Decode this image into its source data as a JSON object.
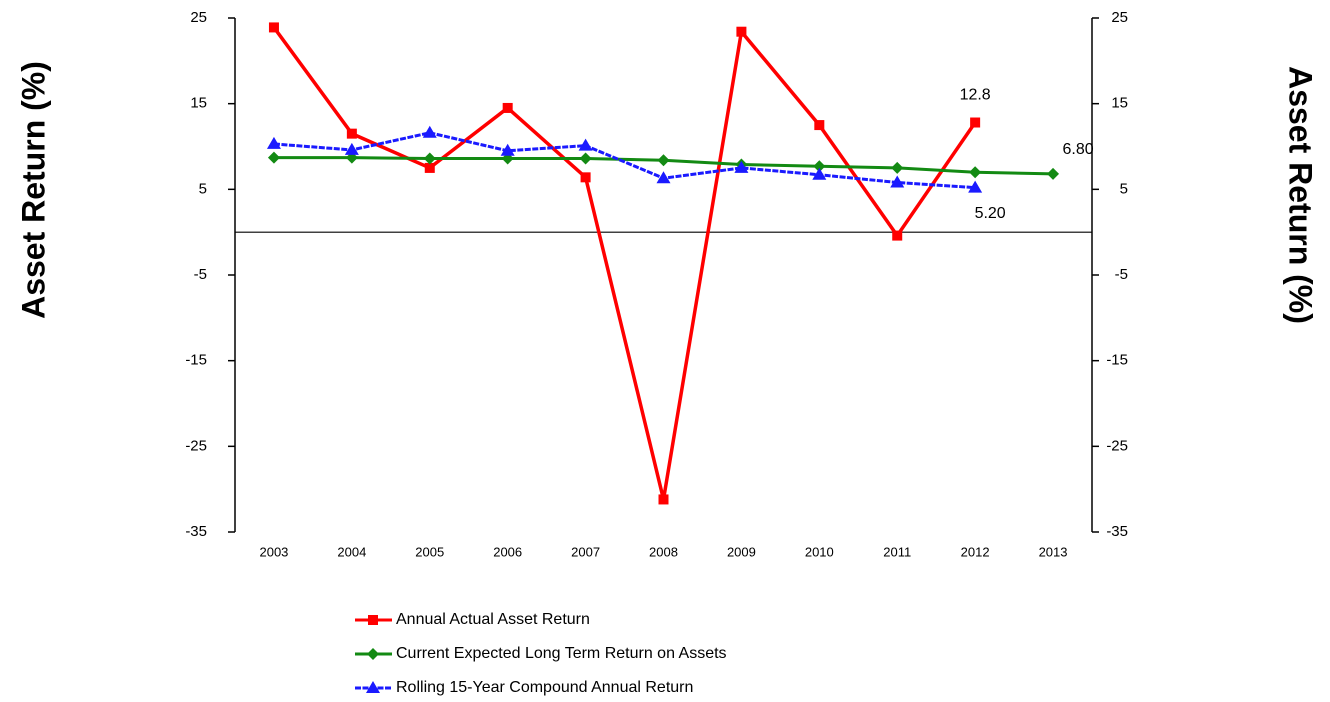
{
  "chart_data": {
    "type": "line",
    "y_label": "Asset Return (%)",
    "y2_label": "Asset Return (%)",
    "categories": [
      "2003",
      "2004",
      "2005",
      "2006",
      "2007",
      "2008",
      "2009",
      "2010",
      "2011",
      "2012",
      "2013"
    ],
    "series": [
      {
        "name": "Annual Actual Asset Return",
        "color": "#ff0000",
        "marker": "square",
        "values": [
          23.9,
          11.5,
          7.5,
          14.5,
          6.4,
          -31.2,
          23.4,
          12.5,
          -0.4,
          12.8,
          null
        ],
        "value_labels": [
          null,
          null,
          null,
          null,
          null,
          null,
          null,
          null,
          null,
          "12.8",
          null
        ]
      },
      {
        "name": "Current Expected Long Term Return on Assets",
        "color": "#138a13",
        "marker": "diamond",
        "values": [
          8.7,
          8.7,
          8.6,
          8.6,
          8.6,
          8.4,
          7.9,
          7.7,
          7.5,
          7.0,
          6.8
        ],
        "value_labels": [
          null,
          null,
          null,
          null,
          null,
          null,
          null,
          null,
          null,
          null,
          "6.80"
        ]
      },
      {
        "name": "Rolling 15-Year Compound Annual Return",
        "color": "#1a1aff",
        "marker": "triangle",
        "values": [
          10.3,
          9.6,
          11.6,
          9.5,
          10.1,
          6.3,
          7.5,
          6.7,
          5.8,
          5.2,
          null
        ],
        "value_labels": [
          null,
          null,
          null,
          null,
          null,
          null,
          null,
          null,
          null,
          "5.20",
          null
        ]
      }
    ],
    "ylim": [
      -35,
      25
    ],
    "yticks": [
      -35,
      -25,
      -15,
      -5,
      5,
      15,
      25
    ],
    "y2lim": [
      -35,
      25
    ],
    "y2ticks": [
      -35,
      -25,
      -15,
      -5,
      5,
      15,
      25
    ],
    "zero_line": true,
    "legend": "bottom"
  }
}
